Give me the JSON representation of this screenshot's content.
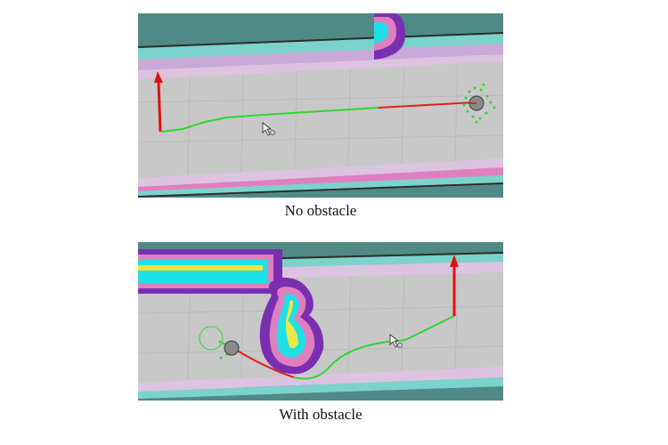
{
  "captions": {
    "top": "No obstacle",
    "bottom": "With obstacle"
  },
  "colors": {
    "floor": "#c8c8c8",
    "grid": "#b8b8b8",
    "wall_dark": "#4f8f8a",
    "wall_teal": "#7bd3cb",
    "inflation_purple": "#8b3fbd",
    "inflation_pink": "#e07fc0",
    "inflation_light": "#e8c2e2",
    "obstacle_cyan": "#1ee0e6",
    "obstacle_yellow": "#e8e84a",
    "global_plan": "#2fd62f",
    "local_plan": "#e02020",
    "goal_arrow": "#e01010",
    "robot": "#8a8a8a"
  },
  "icons": {
    "cursor": "mouse-pointer-icon",
    "goal": "goal-arrow-icon",
    "robot": "robot-footprint-icon"
  }
}
